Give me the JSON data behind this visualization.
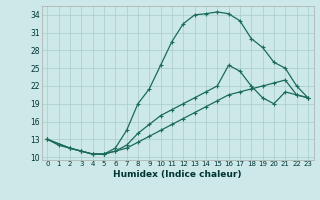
{
  "xlabel": "Humidex (Indice chaleur)",
  "background_color": "#cce8e8",
  "grid_color": "#aacccc",
  "line_color": "#1a6b5a",
  "xlim": [
    -0.5,
    23.5
  ],
  "ylim": [
    9.5,
    35.5
  ],
  "yticks": [
    10,
    13,
    16,
    19,
    22,
    25,
    28,
    31,
    34
  ],
  "xticks": [
    0,
    1,
    2,
    3,
    4,
    5,
    6,
    7,
    8,
    9,
    10,
    11,
    12,
    13,
    14,
    15,
    16,
    17,
    18,
    19,
    20,
    21,
    22,
    23
  ],
  "curve1_x": [
    0,
    1,
    2,
    3,
    4,
    5,
    6,
    7,
    8,
    9,
    10,
    11,
    12,
    13,
    14,
    15,
    16,
    17,
    18,
    19,
    20,
    21,
    22,
    23
  ],
  "curve1_y": [
    13,
    12,
    11.5,
    11,
    10.5,
    10.5,
    11.5,
    14.5,
    19,
    21.5,
    25.5,
    29.5,
    32.5,
    34,
    34.2,
    34.5,
    34.2,
    33.0,
    30,
    28.5,
    26,
    25,
    22,
    20
  ],
  "curve2_x": [
    0,
    2,
    3,
    4,
    5,
    6,
    7,
    8,
    9,
    10,
    11,
    12,
    13,
    14,
    15,
    16,
    17,
    18,
    19,
    20,
    21,
    22,
    23
  ],
  "curve2_y": [
    13,
    11.5,
    11,
    10.5,
    10.5,
    11,
    12,
    14,
    15.5,
    17,
    18,
    19,
    20,
    21,
    22,
    25.5,
    24.5,
    22,
    20,
    19,
    21,
    20.5,
    20
  ],
  "curve3_x": [
    0,
    2,
    3,
    4,
    5,
    6,
    7,
    8,
    9,
    10,
    11,
    12,
    13,
    14,
    15,
    16,
    17,
    18,
    19,
    20,
    21,
    22,
    23
  ],
  "curve3_y": [
    13,
    11.5,
    11,
    10.5,
    10.5,
    11,
    11.5,
    12.5,
    13.5,
    14.5,
    15.5,
    16.5,
    17.5,
    18.5,
    19.5,
    20.5,
    21.0,
    21.5,
    22.0,
    22.5,
    23.0,
    20.5,
    20
  ]
}
